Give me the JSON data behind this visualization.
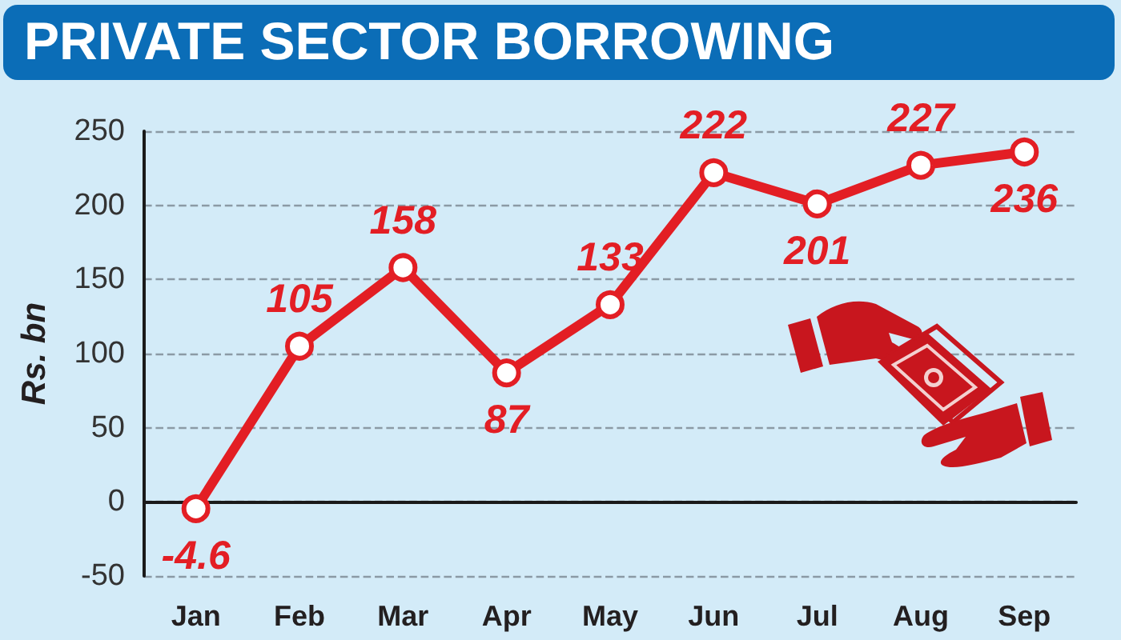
{
  "chart_data": {
    "type": "line",
    "title": "PRIVATE SECTOR BORROWING",
    "ylabel": "Rs. bn",
    "categories": [
      "Jan",
      "Feb",
      "Mar",
      "Apr",
      "May",
      "Jun",
      "Jul",
      "Aug",
      "Sep"
    ],
    "values": [
      -4.6,
      105,
      158,
      87,
      133,
      222,
      201,
      227,
      236
    ],
    "color": "#e31e24",
    "ylim": [
      -50,
      250
    ],
    "yticks": [
      -50,
      0,
      50,
      100,
      150,
      200,
      250
    ],
    "grid": "y",
    "marker": "circle",
    "line_style": "solid",
    "data_labels": true
  }
}
